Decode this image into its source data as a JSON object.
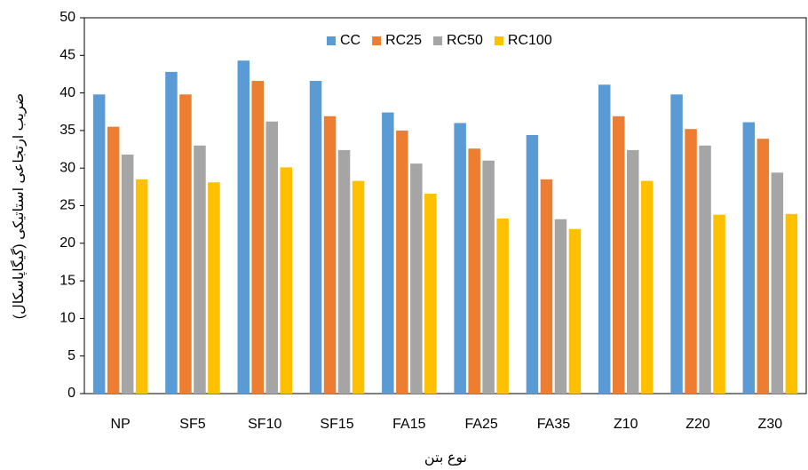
{
  "chart_data": {
    "type": "bar",
    "x_label": "نوع بتن",
    "y_label": "ضریب ارتجاعی استاتیکی (گیگاپاسکال)",
    "categories": [
      "NP",
      "SF5",
      "SF10",
      "SF15",
      "FA15",
      "FA25",
      "FA35",
      "Z10",
      "Z20",
      "Z30"
    ],
    "series": [
      {
        "name": "CC",
        "color": "#5b9bd5",
        "values": [
          39.8,
          42.8,
          44.3,
          41.6,
          37.4,
          36.0,
          34.4,
          41.1,
          39.8,
          36.1
        ]
      },
      {
        "name": "RC25",
        "color": "#ed7d31",
        "values": [
          35.5,
          39.8,
          41.6,
          36.9,
          35.0,
          32.6,
          28.5,
          36.9,
          35.2,
          33.9
        ]
      },
      {
        "name": "RC50",
        "color": "#a5a5a5",
        "values": [
          31.8,
          33.0,
          36.2,
          32.4,
          30.6,
          31.0,
          23.2,
          32.4,
          33.0,
          29.4
        ]
      },
      {
        "name": "RC100",
        "color": "#ffc000",
        "values": [
          28.5,
          28.1,
          30.1,
          28.3,
          26.6,
          23.3,
          21.9,
          28.3,
          23.8,
          23.9
        ]
      }
    ],
    "ylim": [
      0,
      50
    ],
    "yticks": [
      0,
      5,
      10,
      15,
      20,
      25,
      30,
      35,
      40,
      45,
      50
    ],
    "grid": false,
    "legend": "top"
  }
}
